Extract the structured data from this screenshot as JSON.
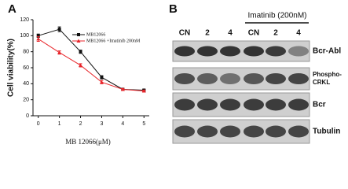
{
  "chart_data": {
    "type": "line",
    "panel_label": "A",
    "x_label": "MB 12066(μM)",
    "y_label": "Cell viability(%)",
    "x": [
      0,
      1,
      2,
      3,
      4,
      5
    ],
    "series": [
      {
        "name": "MB12066",
        "color": "#111111",
        "values": [
          100,
          108,
          80,
          48,
          33,
          32
        ],
        "errors": [
          2,
          3,
          2,
          2,
          1,
          1
        ]
      },
      {
        "name": "MB12066 +Imatinib 200nM",
        "color": "#e8262b",
        "values": [
          96,
          79,
          63,
          42,
          33,
          31
        ],
        "errors": [
          3,
          2,
          2,
          2,
          1,
          1
        ]
      }
    ],
    "xlim": [
      -0.25,
      5.25
    ],
    "xticks": [
      0,
      1,
      2,
      3,
      4,
      5
    ],
    "ylim": [
      0,
      120
    ],
    "yticks": [
      0,
      20,
      40,
      60,
      80,
      100,
      120
    ],
    "legend": "top-right"
  },
  "panel_b": {
    "label": "B",
    "treatment": "Imatinib (200nM)",
    "lanes": [
      "CN",
      "2",
      "4",
      "CN",
      "2",
      "4"
    ],
    "blots": [
      [
        "Bcr-Abl"
      ],
      [
        "Phospho-",
        "CRKL"
      ],
      [
        "Bcr"
      ],
      [
        "Tubulin"
      ]
    ]
  }
}
